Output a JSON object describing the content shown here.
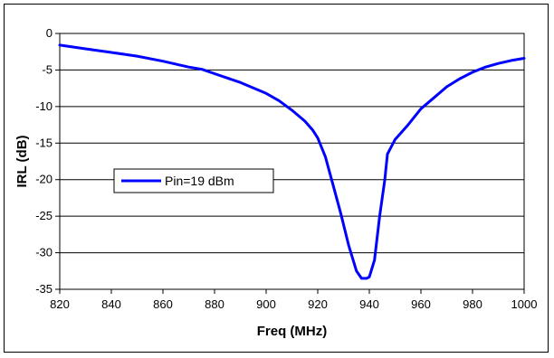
{
  "chart_data": {
    "type": "line",
    "title": "",
    "xlabel": "Freq (MHz)",
    "ylabel": "IRL (dB)",
    "xlim": [
      820,
      1000
    ],
    "ylim": [
      -35,
      0
    ],
    "x_ticks": [
      820,
      840,
      860,
      880,
      900,
      920,
      940,
      960,
      980,
      1000
    ],
    "y_ticks": [
      0,
      -5,
      -10,
      -15,
      -20,
      -25,
      -30,
      -35
    ],
    "grid": "horizontal",
    "legend": "left-middle",
    "series": [
      {
        "name": "Pin=19 dBm",
        "color": "#0000ff",
        "x": [
          820,
          830,
          840,
          850,
          860,
          870,
          875,
          880,
          890,
          900,
          905,
          910,
          915,
          918,
          920,
          923,
          926,
          929,
          932,
          935,
          937,
          939,
          940,
          942,
          944,
          946,
          947,
          950,
          955,
          960,
          965,
          970,
          975,
          980,
          985,
          990,
          995,
          1000
        ],
        "y": [
          -1.6,
          -2.1,
          -2.6,
          -3.1,
          -3.8,
          -4.6,
          -4.9,
          -5.5,
          -6.7,
          -8.2,
          -9.2,
          -10.5,
          -12.0,
          -13.2,
          -14.3,
          -16.9,
          -20.8,
          -24.7,
          -29.0,
          -32.5,
          -33.5,
          -33.5,
          -33.3,
          -31.0,
          -25.0,
          -20.0,
          -16.5,
          -14.5,
          -12.5,
          -10.3,
          -8.8,
          -7.3,
          -6.2,
          -5.3,
          -4.6,
          -4.1,
          -3.7,
          -3.4
        ]
      }
    ]
  }
}
